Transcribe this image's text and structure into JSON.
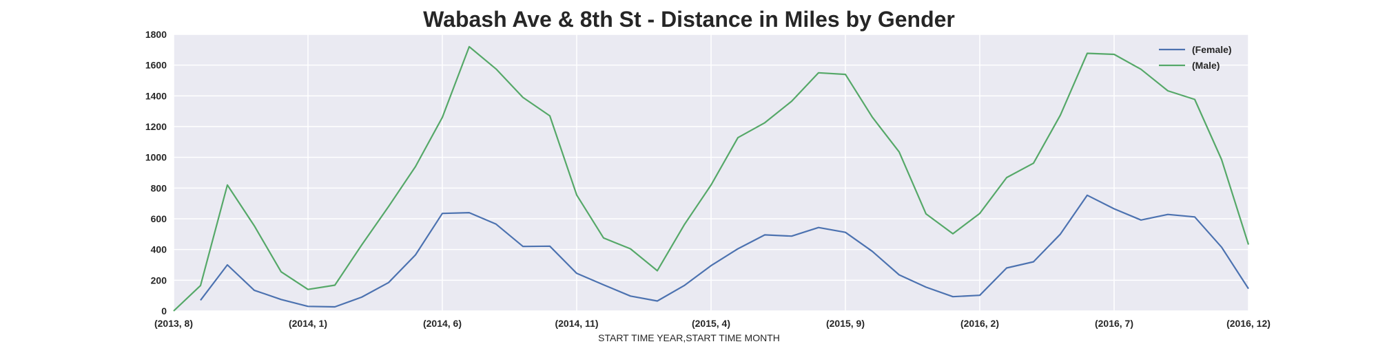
{
  "chart_data": {
    "type": "line",
    "title": "Wabash Ave & 8th St - Distance in Miles by Gender",
    "xlabel": "START TIME YEAR,START TIME MONTH",
    "ylabel": "",
    "ylim": [
      0,
      1800
    ],
    "yticks": [
      0,
      200,
      400,
      600,
      800,
      1000,
      1200,
      1400,
      1600,
      1800
    ],
    "grid": true,
    "legend_position": "top-right",
    "x_tick_labels": [
      "(2013, 8)",
      "(2014, 1)",
      "(2014, 6)",
      "(2014, 11)",
      "(2015, 4)",
      "(2015, 9)",
      "(2016, 2)",
      "(2016, 7)",
      "(2016, 12)"
    ],
    "x": [
      "(2013, 8)",
      "(2013, 9)",
      "(2013, 10)",
      "(2013, 11)",
      "(2013, 12)",
      "(2014, 1)",
      "(2014, 2)",
      "(2014, 3)",
      "(2014, 4)",
      "(2014, 5)",
      "(2014, 6)",
      "(2014, 7)",
      "(2014, 8)",
      "(2014, 9)",
      "(2014, 10)",
      "(2014, 11)",
      "(2014, 12)",
      "(2015, 1)",
      "(2015, 2)",
      "(2015, 3)",
      "(2015, 4)",
      "(2015, 5)",
      "(2015, 6)",
      "(2015, 7)",
      "(2015, 8)",
      "(2015, 9)",
      "(2015, 10)",
      "(2015, 11)",
      "(2015, 12)",
      "(2016, 1)",
      "(2016, 2)",
      "(2016, 3)",
      "(2016, 4)",
      "(2016, 5)",
      "(2016, 6)",
      "(2016, 7)",
      "(2016, 8)",
      "(2016, 9)",
      "(2016, 10)",
      "(2016, 11)",
      "(2016, 12)"
    ],
    "series": [
      {
        "name": "(Female)",
        "color": "#4c72b0",
        "values": [
          null,
          70,
          300,
          135,
          75,
          30,
          27,
          90,
          185,
          365,
          635,
          640,
          565,
          420,
          422,
          245,
          170,
          97,
          65,
          165,
          295,
          405,
          495,
          487,
          543,
          512,
          388,
          235,
          155,
          93,
          102,
          280,
          320,
          500,
          753,
          665,
          592,
          628,
          612,
          415,
          145
        ]
      },
      {
        "name": "(Male)",
        "color": "#55a868",
        "values": [
          0,
          165,
          820,
          555,
          255,
          140,
          168,
          430,
          680,
          940,
          1260,
          1720,
          1575,
          1390,
          1270,
          755,
          475,
          405,
          262,
          560,
          820,
          1128,
          1225,
          1365,
          1550,
          1540,
          1262,
          1035,
          632,
          503,
          635,
          868,
          962,
          1275,
          1677,
          1670,
          1573,
          1433,
          1377,
          985,
          432
        ]
      }
    ]
  }
}
